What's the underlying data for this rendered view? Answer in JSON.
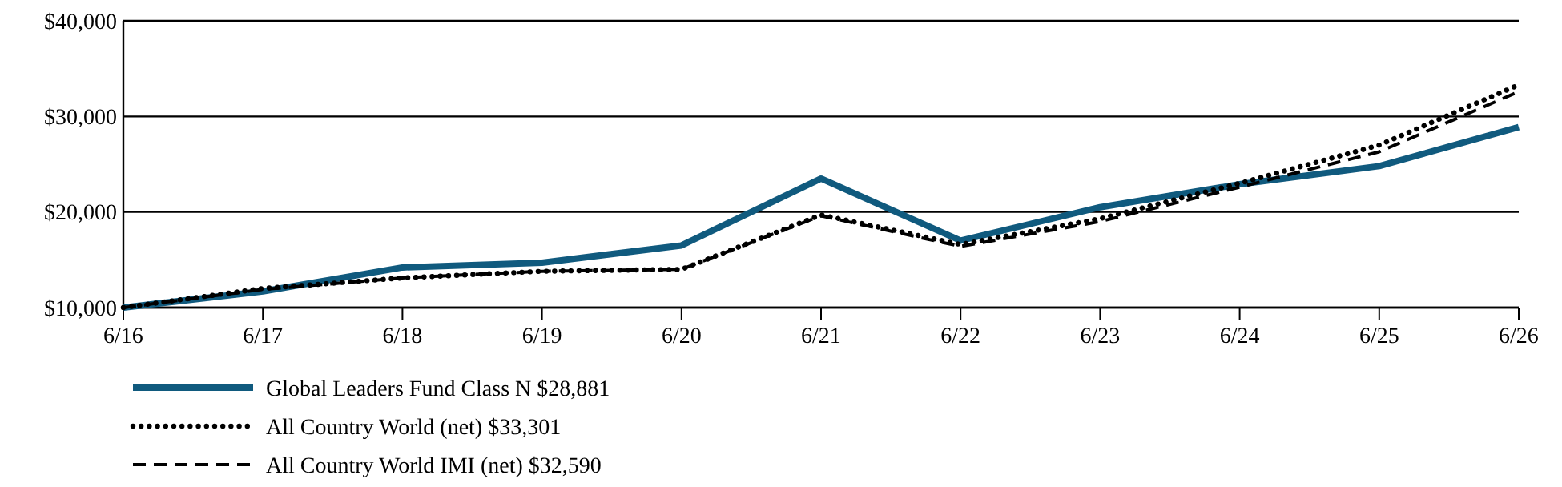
{
  "chart_data": {
    "type": "line",
    "categories": [
      "6/16",
      "6/17",
      "6/18",
      "6/19",
      "6/20",
      "6/21",
      "6/22",
      "6/23",
      "6/24",
      "6/25",
      "6/26"
    ],
    "ylim": [
      10000,
      40000
    ],
    "yticks": [
      {
        "value": 10000,
        "label": "$10,000"
      },
      {
        "value": 20000,
        "label": "$20,000"
      },
      {
        "value": 30000,
        "label": "$30,000"
      },
      {
        "value": 40000,
        "label": "$40,000"
      }
    ],
    "grid": "y",
    "legend": "bottom",
    "series": [
      {
        "name": "Global Leaders Fund Class N $28,881",
        "color": "#105a7e",
        "line_style": "solid",
        "values": [
          10000,
          11700,
          14200,
          14700,
          16500,
          23500,
          17000,
          20500,
          22900,
          24800,
          28881
        ]
      },
      {
        "name": "All Country World (net) $33,301",
        "color": "#000000",
        "line_style": "dotted",
        "values": [
          10000,
          12000,
          13100,
          13800,
          14000,
          19700,
          16600,
          19300,
          23000,
          27000,
          33301
        ]
      },
      {
        "name": "All Country World IMI (net) $32,590",
        "color": "#000000",
        "line_style": "dashed",
        "values": [
          10000,
          11900,
          13100,
          13800,
          14000,
          19600,
          16400,
          19000,
          22600,
          26300,
          32590
        ]
      }
    ]
  }
}
